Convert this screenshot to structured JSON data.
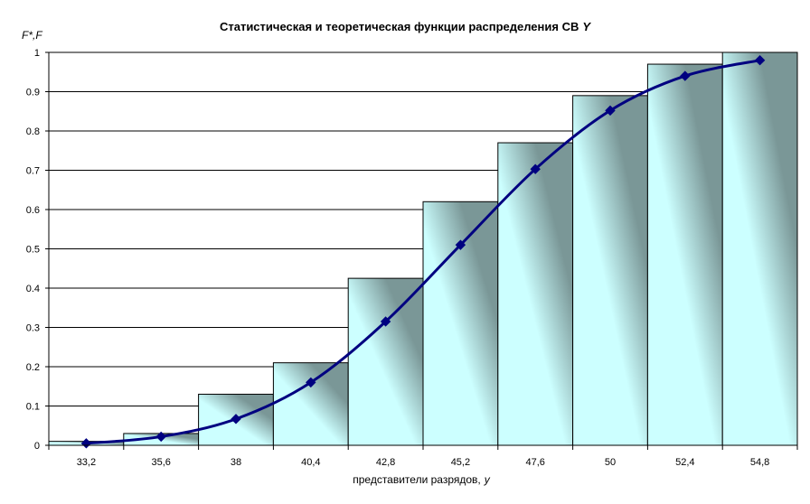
{
  "chart_data": {
    "type": "bar",
    "title_main": "Статистическая и теоретическая функции распределения  СВ",
    "title_var": "Y",
    "ylabel": "F*,F",
    "xlabel_main": "представители разрядов,",
    "xlabel_var": "y",
    "categories": [
      "33,2",
      "35,6",
      "38",
      "40,4",
      "42,8",
      "45,2",
      "47,6",
      "50",
      "52,4",
      "54,8"
    ],
    "ylim": [
      0,
      1
    ],
    "yticks": [
      "0",
      "0.1",
      "0.2",
      "0.3",
      "0.4",
      "0.5",
      "0.6",
      "0.7",
      "0.8",
      "0.9",
      "1"
    ],
    "grid": true,
    "series": [
      {
        "type": "bar",
        "values": [
          0.01,
          0.03,
          0.13,
          0.21,
          0.425,
          0.62,
          0.77,
          0.89,
          0.97,
          1.0
        ]
      },
      {
        "type": "line",
        "values": [
          0.005,
          0.022,
          0.067,
          0.16,
          0.315,
          0.51,
          0.703,
          0.852,
          0.94,
          0.98
        ]
      }
    ],
    "colors": {
      "bar_dark": "#7a9797",
      "bar_light": "#ccffff",
      "line": "#000080",
      "marker": "#000080",
      "grid": "#000000"
    }
  }
}
